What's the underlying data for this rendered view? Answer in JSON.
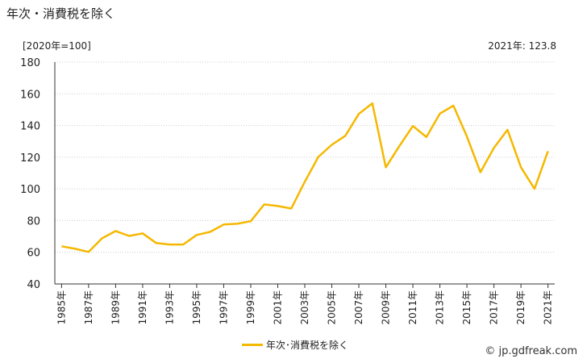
{
  "header": {
    "title": "年次・消費税を除く",
    "unit": "[2020年=100]",
    "latest": "2021年: 123.8"
  },
  "legend": {
    "label": "年次･消費税を除く"
  },
  "credit": "© jp.gdfreak.com",
  "chart_data": {
    "type": "line",
    "x": [
      "1985年",
      "1986年",
      "1987年",
      "1988年",
      "1989年",
      "1990年",
      "1991年",
      "1992年",
      "1993年",
      "1994年",
      "1995年",
      "1996年",
      "1997年",
      "1998年",
      "1999年",
      "2000年",
      "2001年",
      "2002年",
      "2003年",
      "2004年",
      "2005年",
      "2006年",
      "2007年",
      "2008年",
      "2009年",
      "2010年",
      "2011年",
      "2012年",
      "2013年",
      "2014年",
      "2015年",
      "2016年",
      "2017年",
      "2018年",
      "2019年",
      "2020年",
      "2021年"
    ],
    "tick_labels": [
      "1985年",
      "1987年",
      "1989年",
      "1991年",
      "1993年",
      "1995年",
      "1997年",
      "1999年",
      "2001年",
      "2003年",
      "2005年",
      "2007年",
      "2009年",
      "2011年",
      "2013年",
      "2015年",
      "2017年",
      "2019年",
      "2021年"
    ],
    "series": [
      {
        "name": "年次･消費税を除く",
        "color": "#f5b800",
        "values": [
          63.8,
          62.2,
          60.2,
          68.8,
          73.4,
          70.3,
          71.9,
          65.8,
          64.9,
          64.9,
          70.9,
          72.9,
          77.5,
          78.0,
          79.6,
          90.2,
          89.2,
          87.6,
          104.5,
          120.2,
          127.8,
          133.5,
          147.3,
          154.0,
          113.6,
          127.0,
          139.7,
          132.7,
          147.5,
          152.5,
          133.0,
          110.5,
          125.9,
          137.3,
          113.6,
          100.0,
          123.8
        ]
      }
    ],
    "ylim": [
      40,
      180
    ],
    "yticks": [
      40,
      60,
      80,
      100,
      120,
      140,
      160,
      180
    ],
    "grid": true
  }
}
